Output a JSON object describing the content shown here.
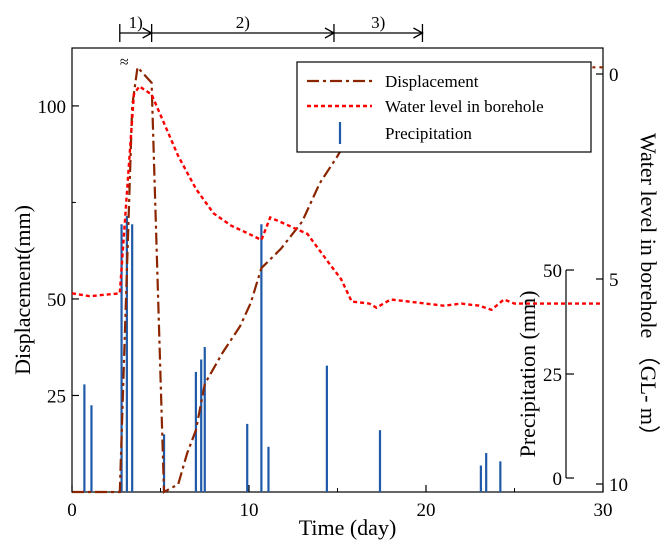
{
  "chart_data": {
    "type": "line",
    "xlabel": "Time (day)",
    "ylabel": "Displacement(mm)",
    "y2label": "Water level in borehole （GL- m）",
    "y3label": "Precipitation (mm)",
    "xlim": [
      0,
      30
    ],
    "ylim": [
      0,
      115
    ],
    "y2lim": [
      0,
      10
    ],
    "y2_inverted": true,
    "y3lim": [
      0,
      50
    ],
    "x_ticks": [
      0,
      10,
      20,
      30
    ],
    "y_ticks": [
      25,
      50,
      100
    ],
    "y2_ticks": [
      0,
      5,
      10
    ],
    "y3_ticks": [
      0,
      25,
      50
    ],
    "break_symbol": "≈",
    "legend": {
      "placement": "top-right",
      "entries": [
        "Displacement",
        "Water level in borehole",
        "Precipitation"
      ]
    },
    "phases": [
      {
        "label": "1)",
        "start": 2.7,
        "end": 4.5
      },
      {
        "label": "2)",
        "start": 4.5,
        "end": 14.8
      },
      {
        "label": "3)",
        "start": 14.8,
        "end": 19.8
      }
    ],
    "series": [
      {
        "name": "Displacement",
        "axis": "left",
        "color": "#8B2500",
        "style": "dash-dot",
        "points": [
          [
            0,
            0
          ],
          [
            2.7,
            0
          ],
          [
            3.4,
            100
          ],
          [
            3.7,
            110
          ],
          [
            4.5,
            106
          ],
          [
            5.2,
            0
          ],
          [
            6,
            2
          ],
          [
            6.5,
            10
          ],
          [
            7,
            16
          ],
          [
            7.5,
            28
          ],
          [
            8.5,
            36
          ],
          [
            9.5,
            43
          ],
          [
            10.1,
            49
          ],
          [
            10.7,
            58
          ],
          [
            11.8,
            63
          ],
          [
            13,
            70
          ],
          [
            14,
            80
          ],
          [
            15,
            87
          ],
          [
            16,
            95
          ],
          [
            17.5,
            101
          ],
          [
            19,
            106
          ],
          [
            21,
            109
          ],
          [
            22,
            110
          ],
          [
            25,
            110
          ],
          [
            30,
            110
          ]
        ]
      },
      {
        "name": "Water level in borehole",
        "axis": "right",
        "color": "#FF0000",
        "style": "dotted",
        "points": [
          [
            0,
            5.35
          ],
          [
            1,
            5.42
          ],
          [
            2.7,
            5.35
          ],
          [
            3.5,
            0.5
          ],
          [
            3.8,
            0.3
          ],
          [
            4.5,
            0.5
          ],
          [
            5,
            1.0
          ],
          [
            6,
            2.0
          ],
          [
            7,
            2.8
          ],
          [
            8,
            3.4
          ],
          [
            9,
            3.7
          ],
          [
            10,
            3.9
          ],
          [
            10.7,
            4.05
          ],
          [
            11.2,
            3.5
          ],
          [
            12,
            3.65
          ],
          [
            13.3,
            3.9
          ],
          [
            14.5,
            4.6
          ],
          [
            15.2,
            5.0
          ],
          [
            15.8,
            5.55
          ],
          [
            16.8,
            5.6
          ],
          [
            17.2,
            5.7
          ],
          [
            18,
            5.5
          ],
          [
            19,
            5.55
          ],
          [
            20,
            5.6
          ],
          [
            21,
            5.65
          ],
          [
            22,
            5.6
          ],
          [
            23,
            5.65
          ],
          [
            23.7,
            5.75
          ],
          [
            24.4,
            5.5
          ],
          [
            25,
            5.6
          ],
          [
            30,
            5.6
          ]
        ]
      },
      {
        "name": "Precipitation",
        "axis": "right3",
        "color": "#1E5AA8",
        "style": "bars",
        "points": [
          [
            0.7,
            22.5
          ],
          [
            1.1,
            17.5
          ],
          [
            2.8,
            61
          ],
          [
            3.1,
            63
          ],
          [
            3.4,
            61
          ],
          [
            5.2,
            10.5
          ],
          [
            7.0,
            25.5
          ],
          [
            7.3,
            28.5
          ],
          [
            7.5,
            31.5
          ],
          [
            9.9,
            13
          ],
          [
            10.7,
            61
          ],
          [
            11.1,
            7.5
          ],
          [
            14.4,
            27
          ],
          [
            17.4,
            11.5
          ],
          [
            23.1,
            3
          ],
          [
            23.4,
            6
          ],
          [
            24.2,
            4
          ]
        ]
      }
    ]
  }
}
